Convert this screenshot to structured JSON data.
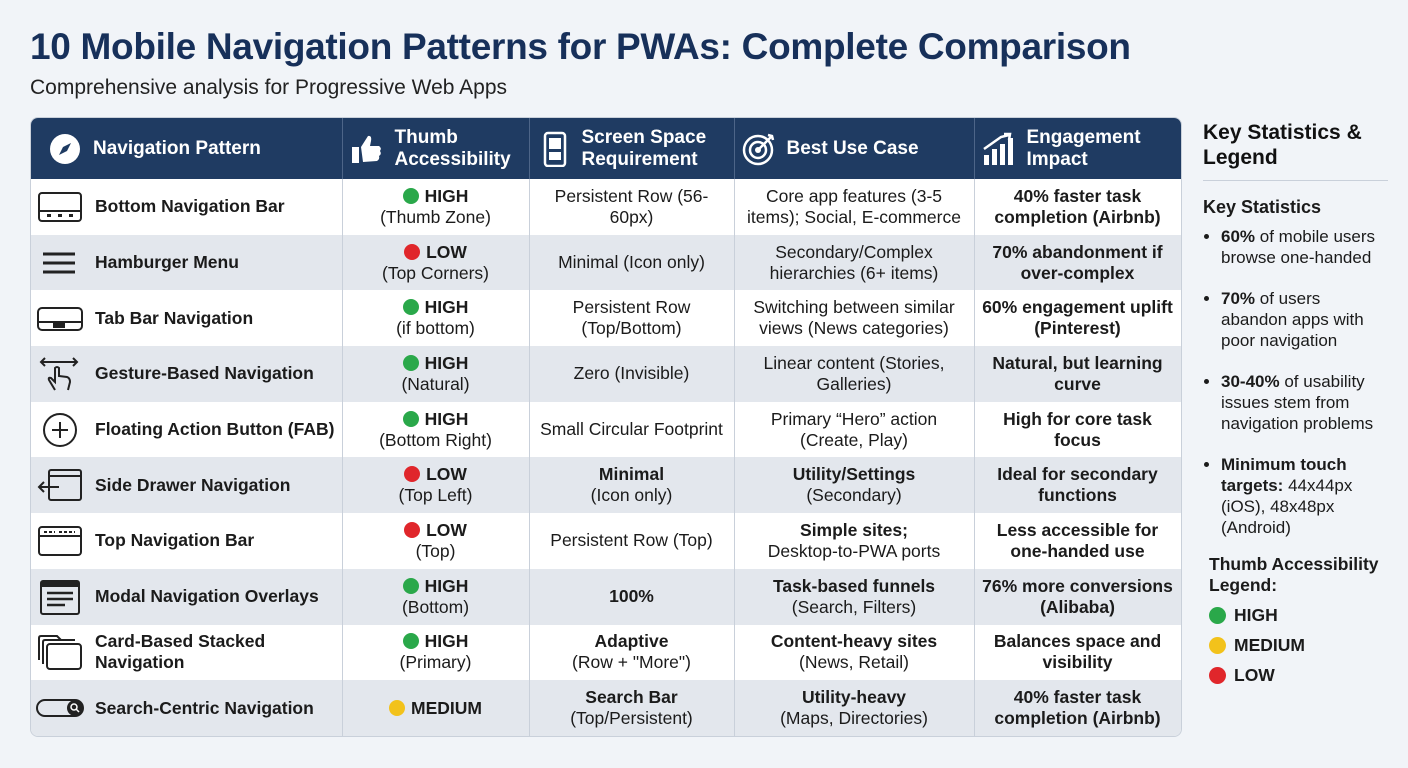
{
  "header": {
    "title": "10 Mobile Navigation Patterns for PWAs: Complete Comparison",
    "subtitle": "Comprehensive analysis for Progressive Web Apps"
  },
  "table": {
    "columns": [
      "Navigation Pattern",
      "Thumb Accessibility",
      "Screen Space Requirement",
      "Best Use Case",
      "Engagement Impact"
    ],
    "rows": [
      {
        "pattern": "Bottom Navigation Bar",
        "thumb": {
          "level": "HIGH",
          "color": "#2aa84a",
          "note": "(Thumb Zone)"
        },
        "space": {
          "text": "Persistent Row (56-60px)"
        },
        "use": {
          "text": "Core app features (3-5 items); Social, E-commerce"
        },
        "impact": {
          "strong": "40% faster task completion (Airbnb)"
        }
      },
      {
        "pattern": "Hamburger Menu",
        "thumb": {
          "level": "LOW",
          "color": "#e0262b",
          "note": "(Top Corners)"
        },
        "space": {
          "text": "Minimal (Icon only)"
        },
        "use": {
          "text": "Secondary/Complex hierarchies (6+ items)"
        },
        "impact": {
          "strong": "70% abandonment if over-complex"
        }
      },
      {
        "pattern": "Tab Bar Navigation",
        "thumb": {
          "level": "HIGH",
          "color": "#2aa84a",
          "note": "(if bottom)"
        },
        "space": {
          "text": "Persistent Row (Top/Bottom)"
        },
        "use": {
          "text": "Switching between similar views (News categories)"
        },
        "impact": {
          "strong": "60% engagement uplift (Pinterest)"
        }
      },
      {
        "pattern": "Gesture-Based Navigation",
        "thumb": {
          "level": "HIGH",
          "color": "#2aa84a",
          "note": "(Natural)"
        },
        "space": {
          "text": "Zero (Invisible)"
        },
        "use": {
          "text": "Linear content (Stories, Galleries)"
        },
        "impact": {
          "strong": "Natural, but learning curve"
        }
      },
      {
        "pattern": "Floating Action Button (FAB)",
        "thumb": {
          "level": "HIGH",
          "color": "#2aa84a",
          "note": "(Bottom Right)"
        },
        "space": {
          "text": "Small Circular Footprint"
        },
        "use": {
          "text": "Primary “Hero” action (Create, Play)"
        },
        "impact": {
          "strong": "High for core task focus"
        }
      },
      {
        "pattern": "Side Drawer Navigation",
        "thumb": {
          "level": "LOW",
          "color": "#e0262b",
          "note": "(Top Left)"
        },
        "space": {
          "strong": "Minimal",
          "text": "(Icon only)"
        },
        "use": {
          "strong": "Utility/Settings",
          "text": "(Secondary)"
        },
        "impact": {
          "strong": "Ideal for secondary functions"
        }
      },
      {
        "pattern": "Top Navigation Bar",
        "thumb": {
          "level": "LOW",
          "color": "#e0262b",
          "note": "(Top)"
        },
        "space": {
          "text": "Persistent Row (Top)"
        },
        "use": {
          "strong": "Simple sites;",
          "text": "Desktop-to-PWA ports"
        },
        "impact": {
          "strong": "Less accessible for one-handed use"
        }
      },
      {
        "pattern": "Modal Navigation Overlays",
        "thumb": {
          "level": "HIGH",
          "color": "#2aa84a",
          "note": "(Bottom)"
        },
        "space": {
          "strong": "100%"
        },
        "use": {
          "strong": "Task-based funnels",
          "text": "(Search, Filters)"
        },
        "impact": {
          "strong": "76% more conversions (Alibaba)"
        }
      },
      {
        "pattern": "Card-Based Stacked Navigation",
        "thumb": {
          "level": "HIGH",
          "color": "#2aa84a",
          "note": "(Primary)"
        },
        "space": {
          "strong": "Adaptive",
          "text": "(Row + \"More\")"
        },
        "use": {
          "strong": "Content-heavy sites",
          "text": "(News, Retail)"
        },
        "impact": {
          "strong": "Balances space and visibility"
        }
      },
      {
        "pattern": "Search-Centric Navigation",
        "thumb": {
          "level": "MEDIUM",
          "color": "#f2c21b"
        },
        "space": {
          "strong": "Search Bar",
          "text": "(Top/Persistent)"
        },
        "use": {
          "strong": "Utility-heavy",
          "text": "(Maps, Directories)"
        },
        "impact": {
          "strong": "40% faster task completion (Airbnb)"
        }
      }
    ]
  },
  "sidebar": {
    "title": "Key Statistics & Legend",
    "stats_heading": "Key Statistics",
    "stats": [
      {
        "strong": "60%",
        "text": "of mobile users browse one-handed"
      },
      {
        "strong": "70%",
        "text": "of users abandon apps with poor navigation"
      },
      {
        "strong": "30-40%",
        "text": "of usability issues stem from navigation problems"
      },
      {
        "strong": "Minimum touch targets:",
        "text": "44x44px (iOS), 48x48px (Android)"
      }
    ],
    "legend_heading": "Thumb Accessibility Legend:",
    "legend": [
      {
        "label": "HIGH",
        "color": "#2aa84a"
      },
      {
        "label": "MEDIUM",
        "color": "#f2c21b"
      },
      {
        "label": "LOW",
        "color": "#e0262b"
      }
    ]
  }
}
